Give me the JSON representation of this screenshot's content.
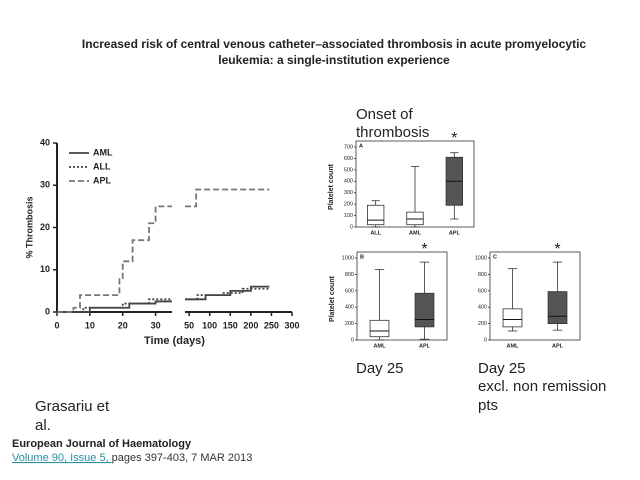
{
  "title": [
    "Increased risk of central venous catheter–associated thrombosis in acute promyelocytic",
    "leukemia: a single-institution experience"
  ],
  "annotations": [
    "Onset of",
    "thrombosis",
    "Day 25",
    "Day 25",
    "excl. non remission",
    "pts"
  ],
  "author": [
    "Grasariu et",
    "al."
  ],
  "citation": {
    "journal": "European Journal of Haematology",
    "link": "Volume 90, Issue 5, ",
    "pages": "pages 397-403, 7 MAR 2013"
  },
  "chart_data": [
    {
      "type": "line",
      "ylabel": "% Thrombosis",
      "xlabel": "Time (days)",
      "xlim": [
        0,
        35
      ],
      "xticks": [
        0,
        10,
        20,
        30
      ],
      "x2lim": [
        40,
        300
      ],
      "x2ticks": [
        50,
        100,
        150,
        200,
        250,
        300
      ],
      "ylim": [
        0,
        40
      ],
      "yticks": [
        0,
        10,
        20,
        30,
        40
      ],
      "legend": "upper left",
      "series": [
        {
          "name": "AML",
          "color": "#444444",
          "dash": "solid",
          "x": [
            0,
            10,
            10,
            22,
            22,
            30,
            30,
            35,
            null,
            40,
            90,
            90,
            150,
            150,
            200,
            200,
            245
          ],
          "values": [
            0,
            0,
            1,
            1,
            2,
            2,
            2.5,
            2.5,
            null,
            3,
            3,
            4,
            4,
            5,
            5,
            6,
            6
          ]
        },
        {
          "name": "ALL",
          "color": "#444444",
          "dash": "dotted",
          "x": [
            0,
            8,
            8,
            20,
            20,
            28,
            28,
            35,
            null,
            40,
            70,
            70,
            130,
            130,
            180,
            180,
            245
          ],
          "values": [
            0,
            0,
            1,
            1,
            2,
            2,
            3,
            3,
            null,
            3,
            3,
            4,
            4,
            4.5,
            4.5,
            5.5,
            5.5
          ]
        },
        {
          "name": "APL",
          "color": "#777777",
          "dash": "dashed",
          "x": [
            0,
            5,
            5,
            7,
            7,
            19,
            19,
            20,
            20,
            23,
            23,
            28,
            28,
            30,
            30,
            35,
            null,
            40,
            67,
            67,
            245
          ],
          "values": [
            0,
            0,
            1,
            1,
            4,
            4,
            8,
            8,
            12,
            12,
            17,
            17,
            21,
            21,
            25,
            25,
            null,
            25,
            25,
            29,
            29
          ]
        }
      ]
    },
    {
      "type": "box",
      "panel": "A",
      "ylabel": "Platelet count",
      "ylim": [
        0,
        700
      ],
      "yticks": [
        0,
        100,
        200,
        300,
        400,
        500,
        600,
        700
      ],
      "categories": [
        "ALL",
        "AML",
        "APL"
      ],
      "annotation": "*",
      "color": "#555555",
      "boxes": [
        {
          "min": 0,
          "q1": 20,
          "median": 60,
          "q3": 190,
          "max": 230
        },
        {
          "min": 0,
          "q1": 20,
          "median": 70,
          "q3": 130,
          "max": 530
        },
        {
          "min": 70,
          "q1": 190,
          "median": 400,
          "q3": 610,
          "max": 650
        }
      ]
    },
    {
      "type": "box",
      "panel": "B",
      "ylabel": "Platelet count",
      "ylim": [
        0,
        1000
      ],
      "yticks": [
        0,
        200,
        400,
        600,
        800,
        1000
      ],
      "categories": [
        "AML",
        "APL"
      ],
      "annotation": "*",
      "color": "#555555",
      "boxes": [
        {
          "min": 0,
          "q1": 40,
          "median": 110,
          "q3": 240,
          "max": 860
        },
        {
          "min": 10,
          "q1": 160,
          "median": 250,
          "q3": 570,
          "max": 950
        }
      ]
    },
    {
      "type": "box",
      "panel": "C",
      "ylim": [
        0,
        1000
      ],
      "yticks": [
        0,
        200,
        400,
        600,
        800,
        1000
      ],
      "categories": [
        "AML",
        "APL"
      ],
      "annotation": "*",
      "color": "#555555",
      "boxes": [
        {
          "min": 110,
          "q1": 160,
          "median": 250,
          "q3": 380,
          "max": 870
        },
        {
          "min": 120,
          "q1": 200,
          "median": 290,
          "q3": 590,
          "max": 950
        }
      ]
    }
  ]
}
